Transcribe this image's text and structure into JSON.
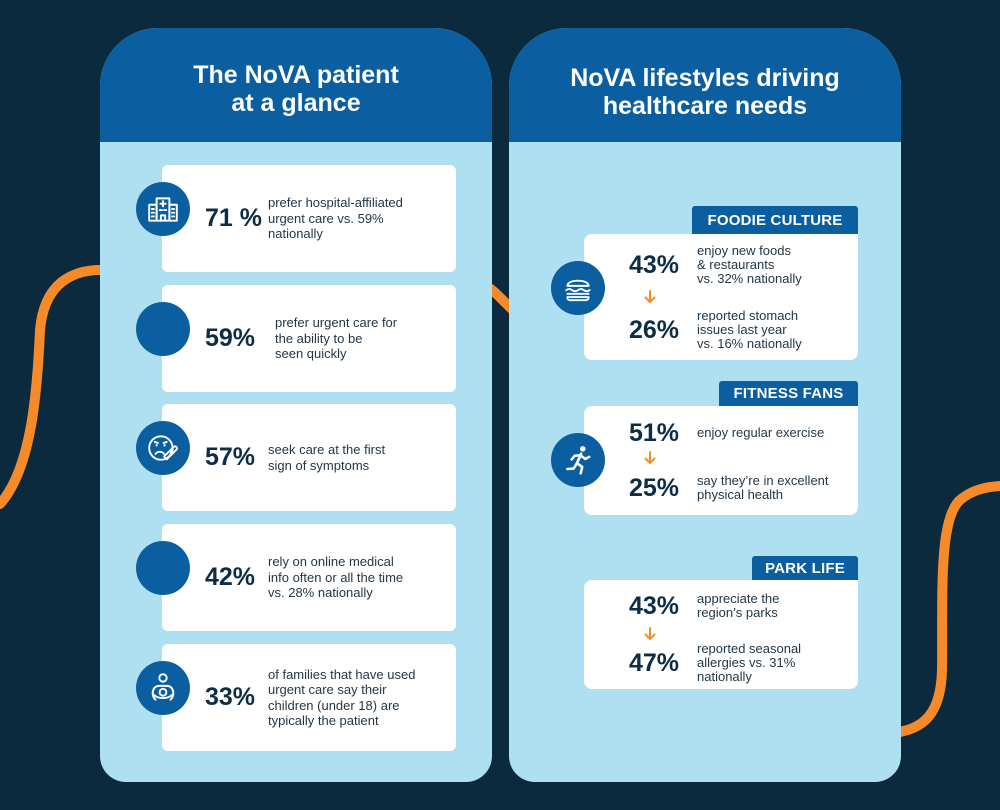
{
  "colors": {
    "background": "#0c2a3e",
    "header": "#0b5fa0",
    "panel": "#aee0f1",
    "card": "#ffffff",
    "stat_text": "#0d2d45",
    "body_text": "#223748",
    "accent": "#f58a2a"
  },
  "left_panel": {
    "title": "The NoVA patient\nat a glance",
    "stats": [
      {
        "icon": "hospital-icon",
        "value": "71 %",
        "text": "prefer hospital-affiliated\nurgent care vs. 59%\nnationally"
      },
      {
        "value": "59%",
        "text": "prefer urgent care for\nthe ability to be\nseen quickly"
      },
      {
        "icon": "sick-face-thermometer-icon",
        "value": "57%",
        "text": "seek care at the first\nsign of symptoms"
      },
      {
        "value": "42%",
        "text": "rely on online medical\ninfo often or all the time\nvs. 28% nationally"
      },
      {
        "icon": "parent-child-icon",
        "value": "33%",
        "text": "of families that have used\nurgent care say their\nchildren (under 18) are\ntypically the patient"
      }
    ]
  },
  "right_panel": {
    "title": "NoVA lifestyles driving\nhealthcare needs",
    "sections": [
      {
        "label": "FOODIE CULTURE",
        "icon": "burger-icon",
        "stats": [
          {
            "value": "43%",
            "text": "enjoy new foods\n& restaurants\nvs. 32% nationally"
          },
          {
            "value": "26%",
            "text": "reported stomach\nissues last year\nvs. 16% nationally"
          }
        ]
      },
      {
        "label": "FITNESS FANS",
        "icon": "running-person-icon",
        "stats": [
          {
            "value": "51%",
            "text": "enjoy regular exercise"
          },
          {
            "value": "25%",
            "text": "say they’re in excellent\nphysical health"
          }
        ]
      },
      {
        "label": "PARK LIFE",
        "stats": [
          {
            "value": "43%",
            "text": "appreciate the\nregion’s parks"
          },
          {
            "value": "47%",
            "text": "reported seasonal\nallergies vs. 31%\nnationally"
          }
        ]
      }
    ]
  }
}
